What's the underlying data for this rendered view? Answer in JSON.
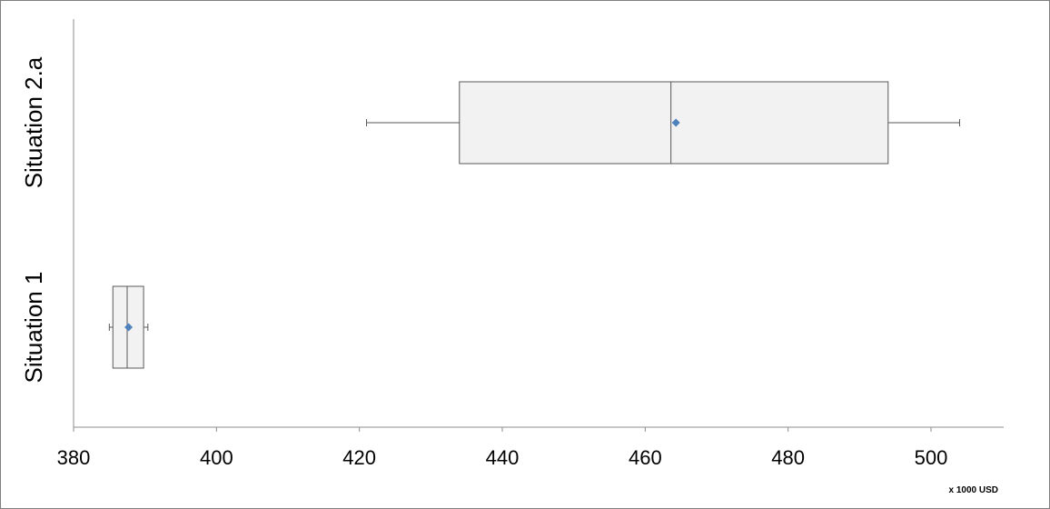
{
  "chart_data": {
    "type": "boxplot",
    "orientation": "horizontal",
    "categories": [
      "Situation 2.a",
      "Situation 1"
    ],
    "boxes": [
      {
        "category": "Situation 2.a",
        "whisker_low": 421,
        "q1": 434,
        "median": 463.6,
        "mean": 464.3,
        "q3": 494,
        "whisker_high": 504
      },
      {
        "category": "Situation 1",
        "whisker_low": 385,
        "q1": 385.5,
        "median": 387.5,
        "mean": 387.7,
        "q3": 389.8,
        "whisker_high": 390.4
      }
    ],
    "xlim": [
      380,
      510
    ],
    "xticks": [
      380,
      400,
      420,
      440,
      460,
      480,
      500
    ],
    "xlabel": "x 1000 USD",
    "colors": {
      "box_fill": "#f2f2f2",
      "box_stroke": "#595959",
      "mean_marker": "#4f81bd",
      "axis": "#8c8c8c"
    }
  }
}
